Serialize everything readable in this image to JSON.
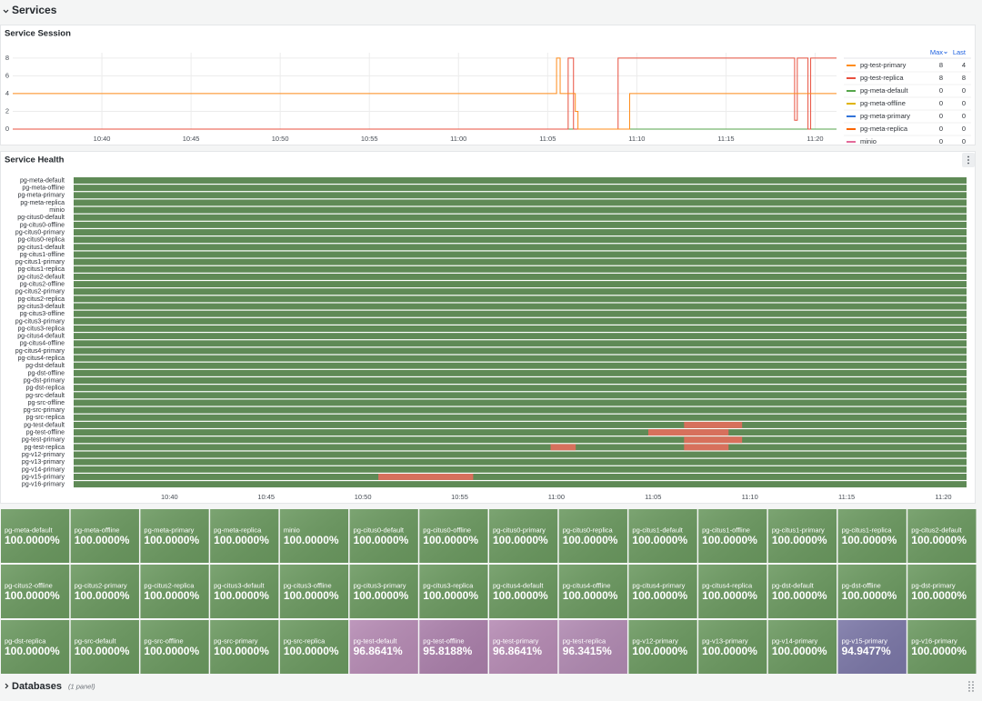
{
  "rows": [
    {
      "title": "Services"
    },
    {
      "title": "Databases",
      "note": "(1 panel)"
    }
  ],
  "chart_data": [
    {
      "type": "line",
      "title": "Service Session",
      "step": true,
      "grid": true,
      "xlim": [
        35,
        81.2
      ],
      "ylim": [
        0,
        8.6
      ],
      "yticks": [
        0,
        2,
        4,
        6,
        8
      ],
      "xticks": [
        {
          "value": 40,
          "label": "10:40"
        },
        {
          "value": 45,
          "label": "10:45"
        },
        {
          "value": 50,
          "label": "10:50"
        },
        {
          "value": 55,
          "label": "10:55"
        },
        {
          "value": 60,
          "label": "11:00"
        },
        {
          "value": 65,
          "label": "11:05"
        },
        {
          "value": 70,
          "label": "11:10"
        },
        {
          "value": 75,
          "label": "11:15"
        },
        {
          "value": 80,
          "label": "11:20"
        }
      ],
      "legend_columns": [
        "Max",
        "Last"
      ],
      "series": [
        {
          "name": "pg-test-primary",
          "color": "#ff8c1a",
          "x": [
            35,
            65.5,
            65.7,
            66.55,
            66.7,
            69.6,
            81.2
          ],
          "values": [
            4,
            8,
            4,
            2,
            0,
            4,
            4
          ],
          "max": 8,
          "last": 4
        },
        {
          "name": "pg-test-replica",
          "color": "#e8503f",
          "x": [
            35,
            66.15,
            66.45,
            68.95,
            78.85,
            79.0,
            79.6,
            79.75,
            81.2
          ],
          "values": [
            0,
            8,
            0,
            8,
            1,
            8,
            0,
            8,
            8
          ],
          "max": 8,
          "last": 8
        },
        {
          "name": "pg-meta-default",
          "color": "#56a64b",
          "x": [
            35,
            81.2
          ],
          "values": [
            0,
            0
          ],
          "max": 0,
          "last": 0
        },
        {
          "name": "pg-meta-offline",
          "color": "#e0b400",
          "x": [
            35,
            81.2
          ],
          "values": [
            0,
            0
          ],
          "max": 0,
          "last": 0
        },
        {
          "name": "pg-meta-primary",
          "color": "#3274d9",
          "x": [
            35,
            81.2
          ],
          "values": [
            0,
            0
          ],
          "max": 0,
          "last": 0
        },
        {
          "name": "pg-meta-replica",
          "color": "#fa6400",
          "x": [
            35,
            81.2
          ],
          "values": [
            0,
            0
          ],
          "max": 0,
          "last": 0
        },
        {
          "name": "minio",
          "color": "#e36a9a",
          "x": [
            35,
            81.2
          ],
          "values": [
            0,
            0
          ],
          "max": 0,
          "last": 0
        }
      ]
    },
    {
      "type": "state-timeline",
      "title": "Service Health",
      "xlim": [
        35.05,
        81.2
      ],
      "xticks": [
        {
          "value": 40,
          "label": "10:40"
        },
        {
          "value": 45,
          "label": "10:45"
        },
        {
          "value": 50,
          "label": "10:50"
        },
        {
          "value": 55,
          "label": "10:55"
        },
        {
          "value": 60,
          "label": "11:00"
        },
        {
          "value": 65,
          "label": "11:05"
        },
        {
          "value": 70,
          "label": "11:10"
        },
        {
          "value": 75,
          "label": "11:15"
        },
        {
          "value": 80,
          "label": "11:20"
        }
      ],
      "up_color": "#5f8a56",
      "down_color": "#d7705c",
      "series": [
        {
          "name": "pg-meta-default"
        },
        {
          "name": "pg-meta-offline"
        },
        {
          "name": "pg-meta-primary"
        },
        {
          "name": "pg-meta-replica"
        },
        {
          "name": "minio"
        },
        {
          "name": "pg-citus0-default"
        },
        {
          "name": "pg-citus0-offline"
        },
        {
          "name": "pg-citus0-primary"
        },
        {
          "name": "pg-citus0-replica"
        },
        {
          "name": "pg-citus1-default"
        },
        {
          "name": "pg-citus1-offline"
        },
        {
          "name": "pg-citus1-primary"
        },
        {
          "name": "pg-citus1-replica"
        },
        {
          "name": "pg-citus2-default"
        },
        {
          "name": "pg-citus2-offline"
        },
        {
          "name": "pg-citus2-primary"
        },
        {
          "name": "pg-citus2-replica"
        },
        {
          "name": "pg-citus3-default"
        },
        {
          "name": "pg-citus3-offline"
        },
        {
          "name": "pg-citus3-primary"
        },
        {
          "name": "pg-citus3-replica"
        },
        {
          "name": "pg-citus4-default"
        },
        {
          "name": "pg-citus4-offline"
        },
        {
          "name": "pg-citus4-primary"
        },
        {
          "name": "pg-citus4-replica"
        },
        {
          "name": "pg-dst-default"
        },
        {
          "name": "pg-dst-offline"
        },
        {
          "name": "pg-dst-primary"
        },
        {
          "name": "pg-dst-replica"
        },
        {
          "name": "pg-src-default"
        },
        {
          "name": "pg-src-offline"
        },
        {
          "name": "pg-src-primary"
        },
        {
          "name": "pg-src-replica"
        },
        {
          "name": "pg-test-default",
          "down": [
            [
              66.6,
              69.6
            ]
          ]
        },
        {
          "name": "pg-test-offline",
          "down": [
            [
              64.75,
              68.9
            ]
          ]
        },
        {
          "name": "pg-test-primary",
          "down": [
            [
              66.6,
              69.6
            ]
          ]
        },
        {
          "name": "pg-test-replica",
          "down": [
            [
              59.7,
              61.0
            ],
            [
              66.6,
              68.9
            ]
          ]
        },
        {
          "name": "pg-v12-primary"
        },
        {
          "name": "pg-v13-primary"
        },
        {
          "name": "pg-v14-primary"
        },
        {
          "name": "pg-v15-primary",
          "down": [
            [
              50.8,
              55.7
            ]
          ]
        },
        {
          "name": "pg-v16-primary"
        }
      ]
    }
  ],
  "stats": {
    "color": "#6a985f",
    "columns": 14,
    "tiles": [
      {
        "name": "pg-meta-default",
        "value": 100,
        "label": "100.0000%"
      },
      {
        "name": "pg-meta-offline",
        "value": 100,
        "label": "100.0000%"
      },
      {
        "name": "pg-meta-primary",
        "value": 100,
        "label": "100.0000%"
      },
      {
        "name": "pg-meta-replica",
        "value": 100,
        "label": "100.0000%"
      },
      {
        "name": "minio",
        "value": 100,
        "label": "100.0000%"
      },
      {
        "name": "pg-citus0-default",
        "value": 100,
        "label": "100.0000%"
      },
      {
        "name": "pg-citus0-offline",
        "value": 100,
        "label": "100.0000%"
      },
      {
        "name": "pg-citus0-primary",
        "value": 100,
        "label": "100.0000%"
      },
      {
        "name": "pg-citus0-replica",
        "value": 100,
        "label": "100.0000%"
      },
      {
        "name": "pg-citus1-default",
        "value": 100,
        "label": "100.0000%"
      },
      {
        "name": "pg-citus1-offline",
        "value": 100,
        "label": "100.0000%"
      },
      {
        "name": "pg-citus1-primary",
        "value": 100,
        "label": "100.0000%"
      },
      {
        "name": "pg-citus1-replica",
        "value": 100,
        "label": "100.0000%"
      },
      {
        "name": "pg-citus2-default",
        "value": 100,
        "label": "100.0000%"
      },
      {
        "name": "pg-citus2-offline",
        "value": 100,
        "label": "100.0000%"
      },
      {
        "name": "pg-citus2-primary",
        "value": 100,
        "label": "100.0000%"
      },
      {
        "name": "pg-citus2-replica",
        "value": 100,
        "label": "100.0000%"
      },
      {
        "name": "pg-citus3-default",
        "value": 100,
        "label": "100.0000%"
      },
      {
        "name": "pg-citus3-offline",
        "value": 100,
        "label": "100.0000%"
      },
      {
        "name": "pg-citus3-primary",
        "value": 100,
        "label": "100.0000%"
      },
      {
        "name": "pg-citus3-replica",
        "value": 100,
        "label": "100.0000%"
      },
      {
        "name": "pg-citus4-default",
        "value": 100,
        "label": "100.0000%"
      },
      {
        "name": "pg-citus4-offline",
        "value": 100,
        "label": "100.0000%"
      },
      {
        "name": "pg-citus4-primary",
        "value": 100,
        "label": "100.0000%"
      },
      {
        "name": "pg-citus4-replica",
        "value": 100,
        "label": "100.0000%"
      },
      {
        "name": "pg-dst-default",
        "value": 100,
        "label": "100.0000%"
      },
      {
        "name": "pg-dst-offline",
        "value": 100,
        "label": "100.0000%"
      },
      {
        "name": "pg-dst-primary",
        "value": 100,
        "label": "100.0000%"
      },
      {
        "name": "pg-dst-replica",
        "value": 100,
        "label": "100.0000%"
      },
      {
        "name": "pg-src-default",
        "value": 100,
        "label": "100.0000%"
      },
      {
        "name": "pg-src-offline",
        "value": 100,
        "label": "100.0000%"
      },
      {
        "name": "pg-src-primary",
        "value": 100,
        "label": "100.0000%"
      },
      {
        "name": "pg-src-replica",
        "value": 100,
        "label": "100.0000%"
      },
      {
        "name": "pg-test-default",
        "value": 96.8641,
        "label": "96.8641%",
        "color": "#b58ab3"
      },
      {
        "name": "pg-test-offline",
        "value": 95.8188,
        "label": "95.8188%",
        "color": "#a97ea9"
      },
      {
        "name": "pg-test-primary",
        "value": 96.8641,
        "label": "96.8641%",
        "color": "#b58ab3"
      },
      {
        "name": "pg-test-replica",
        "value": 96.3415,
        "label": "96.3415%",
        "color": "#b089b1"
      },
      {
        "name": "pg-v12-primary",
        "value": 100,
        "label": "100.0000%"
      },
      {
        "name": "pg-v13-primary",
        "value": 100,
        "label": "100.0000%"
      },
      {
        "name": "pg-v14-primary",
        "value": 100,
        "label": "100.0000%"
      },
      {
        "name": "pg-v15-primary",
        "value": 94.9477,
        "label": "94.9477%",
        "color": "#7a76a6"
      },
      {
        "name": "pg-v16-primary",
        "value": 100,
        "label": "100.0000%"
      }
    ]
  }
}
